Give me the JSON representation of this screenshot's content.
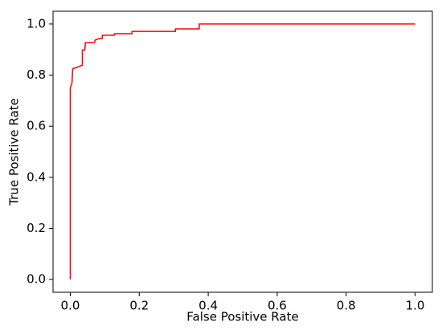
{
  "chart_data": {
    "type": "line",
    "xlabel": "False Positive Rate",
    "ylabel": "True Positive Rate",
    "series": [
      {
        "color": "#ff0000",
        "x": [
          0,
          0,
          0.005,
          0.007,
          0.019,
          0.033,
          0.035,
          0.035,
          0.042,
          0.044,
          0.07,
          0.072,
          0.084,
          0.093,
          0.093,
          0.128,
          0.128,
          0.179,
          0.179,
          0.305,
          0.305,
          0.374,
          0.374,
          1.0
        ],
        "values": [
          0,
          0.75,
          0.77,
          0.825,
          0.83,
          0.838,
          0.838,
          0.898,
          0.898,
          0.927,
          0.927,
          0.937,
          0.943,
          0.943,
          0.956,
          0.956,
          0.962,
          0.962,
          0.971,
          0.971,
          0.981,
          0.981,
          1.0,
          1.0
        ]
      }
    ],
    "xlim": [
      -0.05,
      1.05
    ],
    "ylim": [
      -0.05,
      1.05
    ],
    "xticks": [
      {
        "value": 0,
        "label": "0.0"
      },
      0.2,
      0.4,
      0.6,
      0.8,
      {
        "value": 1,
        "label": "1.0"
      }
    ],
    "yticks": [
      {
        "value": 0,
        "label": "0.0"
      },
      0.2,
      0.4,
      0.6,
      0.8,
      {
        "value": 1,
        "label": "1.0"
      }
    ],
    "grid": false
  }
}
